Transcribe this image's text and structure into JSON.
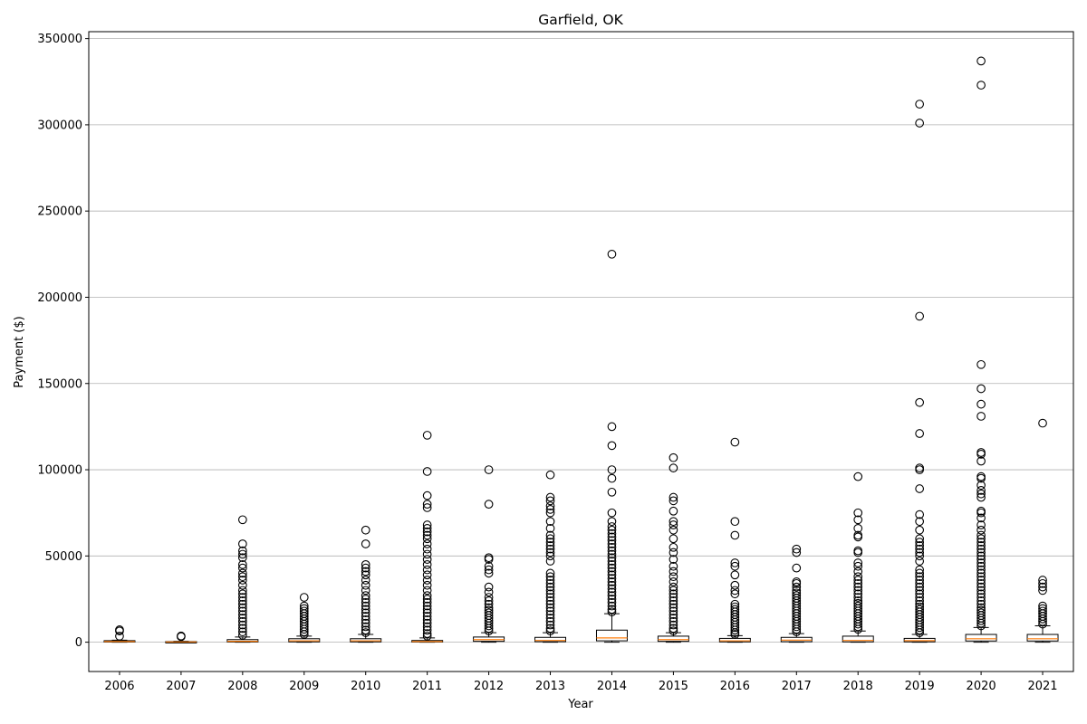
{
  "chart_data": {
    "type": "box",
    "title": "Garfield, OK",
    "xlabel": "Year",
    "ylabel": "Payment ($)",
    "ylim": [
      -17000,
      354000
    ],
    "yticks": [
      0,
      50000,
      100000,
      150000,
      200000,
      250000,
      300000,
      350000
    ],
    "grid": "horizontal",
    "colors": {
      "box": "#000000",
      "median": "#ff7f0e",
      "outlier": "#000000",
      "grid": "#b0b0b0"
    },
    "categories": [
      "2006",
      "2007",
      "2008",
      "2009",
      "2010",
      "2011",
      "2012",
      "2013",
      "2014",
      "2015",
      "2016",
      "2017",
      "2018",
      "2019",
      "2020",
      "2021"
    ],
    "boxes": [
      {
        "year": "2006",
        "q1": 100,
        "median": 400,
        "q3": 900,
        "whisker_low": 0,
        "whisker_high": 1200,
        "outliers": [
          3500,
          6500,
          7200
        ]
      },
      {
        "year": "2007",
        "q1": 50,
        "median": 150,
        "q3": 350,
        "whisker_low": 0,
        "whisker_high": 500,
        "outliers": [
          3200,
          3600
        ]
      },
      {
        "year": "2008",
        "q1": 150,
        "median": 500,
        "q3": 1500,
        "whisker_low": 0,
        "whisker_high": 3000,
        "outliers": [
          4000,
          6000,
          8000,
          10000,
          12000,
          14000,
          16000,
          18000,
          20000,
          22000,
          24000,
          26000,
          28000,
          30000,
          33000,
          36000,
          38000,
          40000,
          43000,
          45000,
          49000,
          51000,
          53000,
          57000,
          71000
        ]
      },
      {
        "year": "2009",
        "q1": 200,
        "median": 800,
        "q3": 2000,
        "whisker_low": 0,
        "whisker_high": 3500,
        "outliers": [
          4500,
          6000,
          7500,
          9000,
          10500,
          12000,
          13500,
          15000,
          16500,
          18000,
          19500,
          21000,
          26000
        ]
      },
      {
        "year": "2010",
        "q1": 200,
        "median": 800,
        "q3": 2000,
        "whisker_low": 0,
        "whisker_high": 4500,
        "outliers": [
          5500,
          7000,
          9000,
          11000,
          13000,
          15000,
          17000,
          19000,
          21000,
          23000,
          25000,
          27000,
          30000,
          33000,
          36000,
          39000,
          41000,
          43000,
          45000,
          57000,
          65000
        ]
      },
      {
        "year": "2011",
        "q1": 100,
        "median": 400,
        "q3": 1000,
        "whisker_low": 0,
        "whisker_high": 2500,
        "outliers": [
          3500,
          5000,
          7000,
          9000,
          11000,
          13000,
          15000,
          17000,
          19000,
          21000,
          23000,
          25000,
          27000,
          30000,
          33000,
          36000,
          39000,
          42000,
          45000,
          48000,
          51000,
          54000,
          57000,
          60000,
          62000,
          64000,
          66000,
          68000,
          78000,
          80000,
          85000,
          99000,
          120000
        ]
      },
      {
        "year": "2012",
        "q1": 500,
        "median": 1500,
        "q3": 3000,
        "whisker_low": 0,
        "whisker_high": 5500,
        "outliers": [
          6500,
          8000,
          9500,
          11000,
          12500,
          14000,
          15500,
          17000,
          18500,
          20000,
          22000,
          24000,
          26000,
          29000,
          32000,
          40000,
          42000,
          44000,
          48000,
          49000,
          80000,
          100000
        ]
      },
      {
        "year": "2013",
        "q1": 300,
        "median": 1000,
        "q3": 2800,
        "whisker_low": 0,
        "whisker_high": 5500,
        "outliers": [
          6500,
          8000,
          10000,
          12000,
          14000,
          16000,
          18000,
          20000,
          22000,
          24000,
          26000,
          28000,
          30000,
          32000,
          34000,
          36000,
          38000,
          40000,
          47000,
          50000,
          52000,
          54000,
          56000,
          58000,
          60000,
          62000,
          66000,
          70000,
          75000,
          77000,
          79000,
          82000,
          84000,
          97000
        ]
      },
      {
        "year": "2014",
        "q1": 800,
        "median": 2500,
        "q3": 7000,
        "whisker_low": 0,
        "whisker_high": 16500,
        "outliers": [
          17500,
          19000,
          21000,
          23000,
          25000,
          27000,
          29000,
          31000,
          33000,
          35000,
          37000,
          39000,
          41000,
          43000,
          45000,
          47000,
          49000,
          51000,
          53000,
          55000,
          57000,
          59000,
          61000,
          63000,
          65000,
          67000,
          70000,
          75000,
          87000,
          95000,
          100000,
          114000,
          125000,
          225000
        ]
      },
      {
        "year": "2015",
        "q1": 500,
        "median": 1500,
        "q3": 3500,
        "whisker_low": 0,
        "whisker_high": 5500,
        "outliers": [
          6500,
          8000,
          10000,
          12000,
          14000,
          16000,
          18000,
          20000,
          22000,
          24000,
          26000,
          28000,
          30000,
          32000,
          35000,
          38000,
          41000,
          44000,
          48000,
          52000,
          55000,
          60000,
          65000,
          68000,
          70000,
          76000,
          82000,
          84000,
          101000,
          107000
        ]
      },
      {
        "year": "2016",
        "q1": 200,
        "median": 800,
        "q3": 2200,
        "whisker_low": 0,
        "whisker_high": 3800,
        "outliers": [
          4500,
          5500,
          7000,
          8500,
          10000,
          11500,
          13000,
          14500,
          16000,
          17500,
          19000,
          20500,
          22000,
          28000,
          30000,
          33000,
          39000,
          44000,
          46000,
          62000,
          70000,
          116000
        ]
      },
      {
        "year": "2017",
        "q1": 300,
        "median": 1200,
        "q3": 2800,
        "whisker_low": 0,
        "whisker_high": 5000,
        "outliers": [
          6000,
          7500,
          9000,
          10500,
          12000,
          13500,
          15000,
          16500,
          18000,
          19500,
          21000,
          22500,
          24000,
          25500,
          27000,
          28500,
          30000,
          32000,
          34000,
          35000,
          43000,
          52000,
          54000
        ]
      },
      {
        "year": "2018",
        "q1": 200,
        "median": 1000,
        "q3": 3500,
        "whisker_low": 0,
        "whisker_high": 6500,
        "outliers": [
          7500,
          9000,
          10500,
          12000,
          13500,
          15000,
          16500,
          18000,
          19500,
          21000,
          22500,
          24000,
          26000,
          28000,
          30000,
          32000,
          34000,
          36000,
          38000,
          41000,
          44000,
          46000,
          52000,
          53000,
          61000,
          62000,
          66000,
          71000,
          75000,
          96000
        ]
      },
      {
        "year": "2019",
        "q1": 200,
        "median": 900,
        "q3": 2200,
        "whisker_low": 0,
        "whisker_high": 4500,
        "outliers": [
          5500,
          7000,
          8500,
          10000,
          11500,
          13000,
          14500,
          16000,
          17500,
          19000,
          20500,
          22000,
          24000,
          26000,
          28000,
          30000,
          32000,
          34000,
          36000,
          38000,
          40000,
          42000,
          47000,
          50000,
          52000,
          54000,
          56000,
          58000,
          60000,
          65000,
          70000,
          74000,
          89000,
          100000,
          101000,
          121000,
          139000,
          189000,
          301000,
          312000
        ]
      },
      {
        "year": "2020",
        "q1": 700,
        "median": 2000,
        "q3": 4500,
        "whisker_low": 0,
        "whisker_high": 8500,
        "outliers": [
          9500,
          11000,
          12500,
          14000,
          15500,
          17000,
          18500,
          20000,
          22000,
          24000,
          26000,
          28000,
          30000,
          32000,
          34000,
          36000,
          38000,
          40000,
          42000,
          44000,
          46000,
          48000,
          50000,
          52000,
          54000,
          56000,
          58000,
          60000,
          62000,
          65000,
          68000,
          72000,
          75000,
          76000,
          84000,
          86000,
          88000,
          91000,
          95000,
          96000,
          105000,
          109000,
          110000,
          131000,
          138000,
          147000,
          161000,
          323000,
          337000
        ]
      },
      {
        "year": "2021",
        "q1": 700,
        "median": 2000,
        "q3": 4500,
        "whisker_low": 0,
        "whisker_high": 9500,
        "outliers": [
          10500,
          12000,
          13500,
          15000,
          16500,
          18000,
          19500,
          21000,
          30000,
          32000,
          34000,
          36000,
          127000
        ]
      }
    ]
  }
}
